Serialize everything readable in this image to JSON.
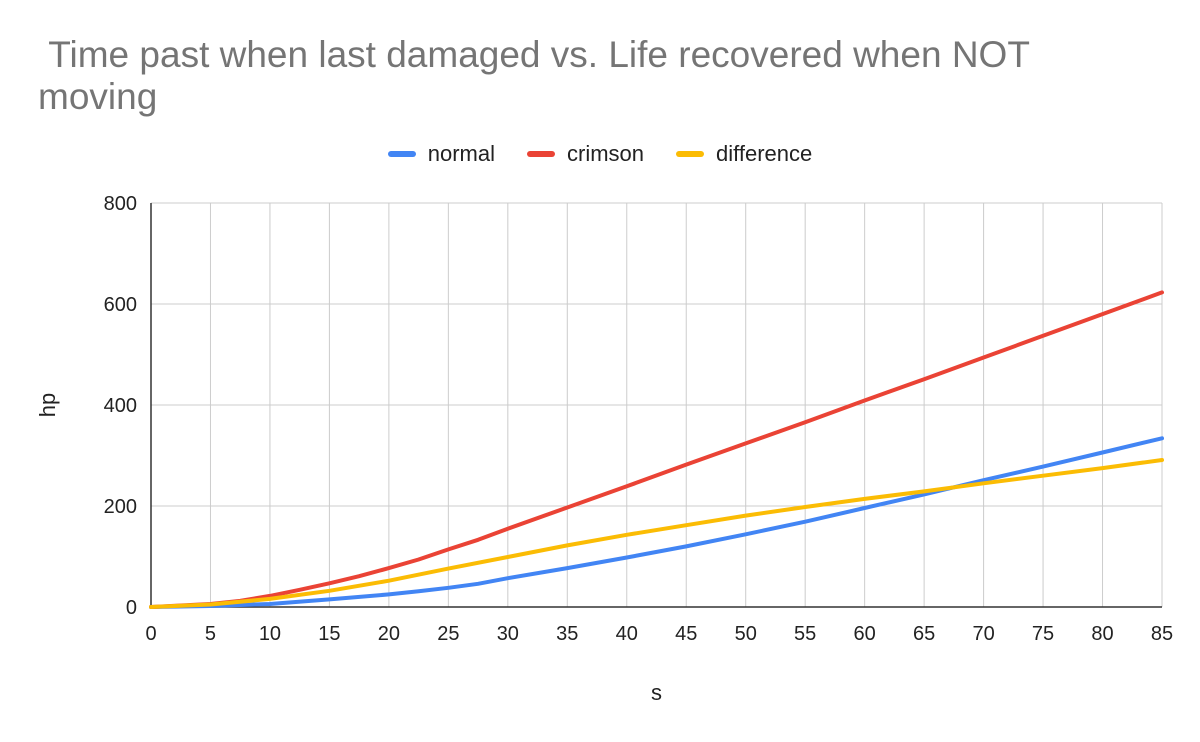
{
  "chart_data": {
    "type": "line",
    "title": " Time past when last damaged vs. Life recovered when NOT moving",
    "xlabel": "s",
    "ylabel": "hp",
    "xlim": [
      0,
      85
    ],
    "ylim": [
      0,
      800
    ],
    "x_ticks": [
      "0",
      "5",
      "10",
      "15",
      "20",
      "25",
      "30",
      "35",
      "40",
      "45",
      "50",
      "55",
      "60",
      "65",
      "70",
      "75",
      "80",
      "85"
    ],
    "y_ticks": [
      "0",
      "200",
      "400",
      "600",
      "800"
    ],
    "grid": true,
    "legend_position": "top",
    "series": [
      {
        "name": "normal",
        "color": "#4285f4",
        "points": [
          [
            0,
            0
          ],
          [
            5,
            2
          ],
          [
            10,
            6
          ],
          [
            15,
            15
          ],
          [
            20,
            25
          ],
          [
            22.5,
            31
          ],
          [
            25,
            38
          ],
          [
            27.5,
            46
          ],
          [
            30,
            57
          ],
          [
            35,
            77
          ],
          [
            40,
            98
          ],
          [
            45,
            120
          ],
          [
            50,
            144
          ],
          [
            55,
            169
          ],
          [
            60,
            196
          ],
          [
            65,
            223
          ],
          [
            70,
            251
          ],
          [
            75,
            278
          ],
          [
            80,
            306
          ],
          [
            85,
            334
          ]
        ]
      },
      {
        "name": "crimson",
        "color": "#ea4335",
        "points": [
          [
            0,
            0
          ],
          [
            5,
            6
          ],
          [
            7.5,
            12
          ],
          [
            10,
            22
          ],
          [
            12.5,
            34
          ],
          [
            15,
            47
          ],
          [
            17.5,
            61
          ],
          [
            20,
            77
          ],
          [
            22.5,
            94
          ],
          [
            25,
            114
          ],
          [
            27.5,
            133
          ],
          [
            30,
            155
          ],
          [
            35,
            197
          ],
          [
            40,
            239
          ],
          [
            45,
            282
          ],
          [
            50,
            324
          ],
          [
            55,
            366
          ],
          [
            60,
            409
          ],
          [
            65,
            451
          ],
          [
            70,
            494
          ],
          [
            75,
            537
          ],
          [
            80,
            580
          ],
          [
            85,
            623
          ]
        ]
      },
      {
        "name": "difference",
        "color": "#fbbc04",
        "points": [
          [
            0,
            0
          ],
          [
            5,
            5
          ],
          [
            10,
            16
          ],
          [
            15,
            32
          ],
          [
            20,
            52
          ],
          [
            25,
            76
          ],
          [
            30,
            99
          ],
          [
            35,
            122
          ],
          [
            40,
            143
          ],
          [
            45,
            162
          ],
          [
            50,
            181
          ],
          [
            55,
            198
          ],
          [
            60,
            214
          ],
          [
            65,
            229
          ],
          [
            70,
            245
          ],
          [
            75,
            260
          ],
          [
            80,
            275
          ],
          [
            85,
            291
          ]
        ]
      }
    ]
  }
}
